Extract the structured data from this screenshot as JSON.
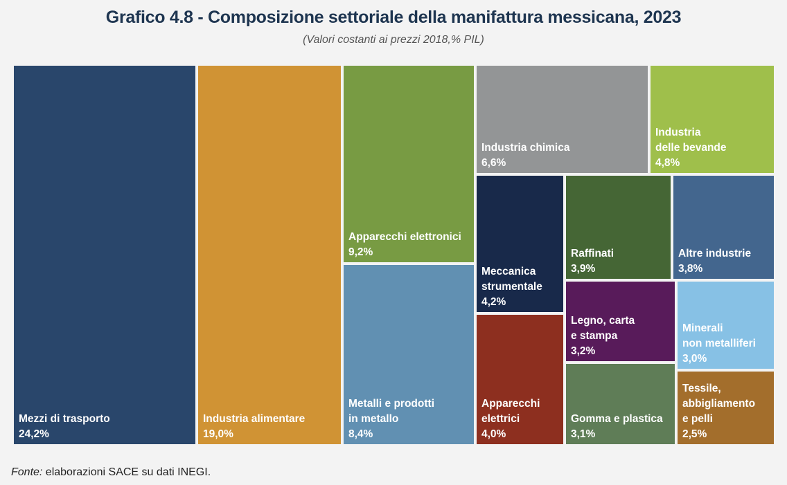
{
  "chart_data": {
    "type": "treemap",
    "title": "Grafico 4.8 - Composizione settoriale della manifattura messicana, 2023",
    "subtitle": "(Valori costanti ai prezzi 2018,% PIL)",
    "items": [
      {
        "name": "Mezzi di trasporto",
        "lines": [
          "Mezzi di trasporto"
        ],
        "value_label": "24,2%",
        "value": 24.2,
        "color": "#29466b"
      },
      {
        "name": "Industria alimentare",
        "lines": [
          "Industria alimentare"
        ],
        "value_label": "19,0%",
        "value": 19.0,
        "color": "#d09334"
      },
      {
        "name": "Apparecchi elettronici",
        "lines": [
          "Apparecchi elettronici"
        ],
        "value_label": "9,2%",
        "value": 9.2,
        "color": "#789b43"
      },
      {
        "name": "Metalli e prodotti in metallo",
        "lines": [
          "Metalli e prodotti",
          "in metallo"
        ],
        "value_label": "8,4%",
        "value": 8.4,
        "color": "#6190b2"
      },
      {
        "name": "Industria chimica",
        "lines": [
          "Industria chimica"
        ],
        "value_label": "6,6%",
        "value": 6.6,
        "color": "#939596"
      },
      {
        "name": "Industria delle bevande",
        "lines": [
          "Industria",
          "delle bevande"
        ],
        "value_label": "4,8%",
        "value": 4.8,
        "color": "#9fbf4b"
      },
      {
        "name": "Meccanica strumentale",
        "lines": [
          "Meccanica",
          "strumentale"
        ],
        "value_label": "4,2%",
        "value": 4.2,
        "color": "#18294a"
      },
      {
        "name": "Raffinati",
        "lines": [
          "Raffinati"
        ],
        "value_label": "3,9%",
        "value": 3.9,
        "color": "#456635"
      },
      {
        "name": "Altre industrie",
        "lines": [
          "Altre industrie"
        ],
        "value_label": "3,8%",
        "value": 3.8,
        "color": "#43668e"
      },
      {
        "name": "Legno, carta e stampa",
        "lines": [
          "Legno, carta",
          "e stampa"
        ],
        "value_label": "3,2%",
        "value": 3.2,
        "color": "#581b5a"
      },
      {
        "name": "Minerali non metalliferi",
        "lines": [
          "Minerali",
          "non metalliferi"
        ],
        "value_label": "3,0%",
        "value": 3.0,
        "color": "#87c1e5"
      },
      {
        "name": "Apparecchi elettrici",
        "lines": [
          "Apparecchi",
          "elettrici"
        ],
        "value_label": "4,0%",
        "value": 4.0,
        "color": "#8d2f1f"
      },
      {
        "name": "Gomma e plastica",
        "lines": [
          "Gomma e plastica"
        ],
        "value_label": "3,1%",
        "value": 3.1,
        "color": "#5f7d57"
      },
      {
        "name": "Tessile, abbigliamento e pelli",
        "lines": [
          "Tessile,",
          "abbigliamento",
          "e pelli"
        ],
        "value_label": "2,5%",
        "value": 2.5,
        "color": "#a36e2c"
      }
    ]
  },
  "source": {
    "prefix": "Fonte:",
    "text": " elaborazioni SACE su dati INEGI."
  }
}
